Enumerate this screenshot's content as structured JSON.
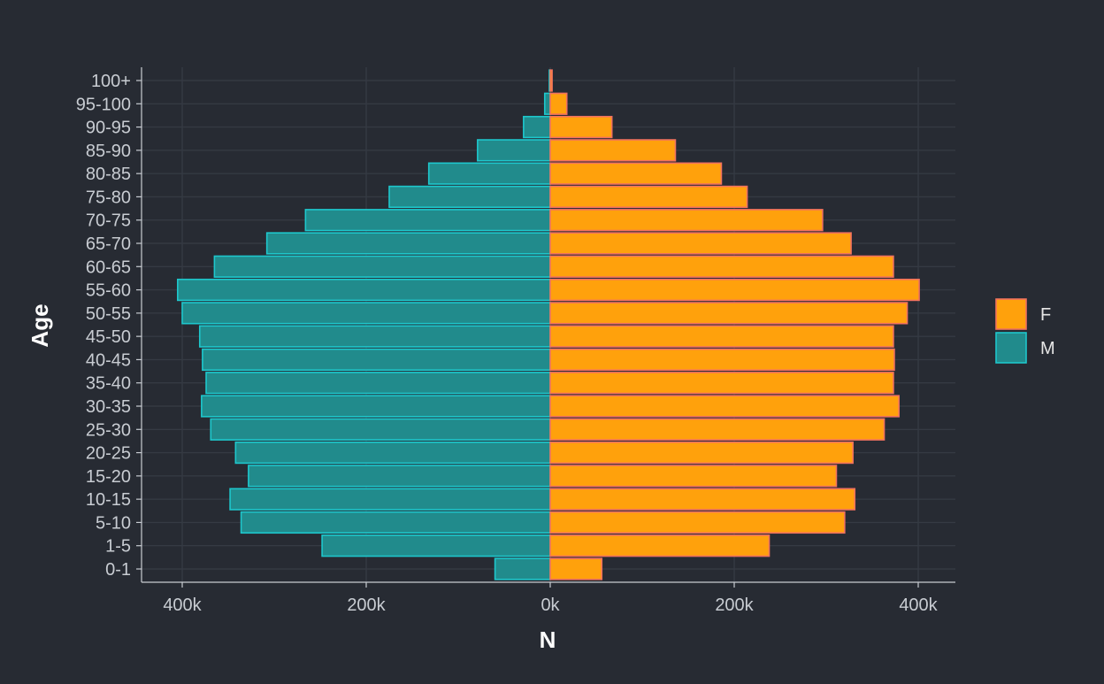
{
  "chart_data": {
    "type": "bar",
    "orientation": "horizontal-diverging",
    "categories": [
      "0-1",
      "1-5",
      "5-10",
      "10-15",
      "15-20",
      "20-25",
      "25-30",
      "30-35",
      "35-40",
      "40-45",
      "45-50",
      "50-55",
      "55-60",
      "60-65",
      "65-70",
      "70-75",
      "75-80",
      "80-85",
      "85-90",
      "90-95",
      "95-100",
      "100+"
    ],
    "series": [
      {
        "name": "F",
        "color": "#ffa10c",
        "border": "#f2725f",
        "values": [
          56000,
          238000,
          320000,
          331000,
          311000,
          329000,
          363000,
          379000,
          373000,
          374000,
          373000,
          388000,
          401000,
          373000,
          327000,
          296000,
          214000,
          186000,
          136000,
          67000,
          18000,
          2000
        ]
      },
      {
        "name": "M",
        "color": "#218b8c",
        "border": "#1ec7cc",
        "values": [
          60000,
          248000,
          336000,
          348000,
          328000,
          342000,
          369000,
          379000,
          374000,
          378000,
          381000,
          400000,
          405000,
          365000,
          308000,
          266000,
          175000,
          132000,
          79000,
          29000,
          6000,
          1000
        ]
      }
    ],
    "xlabel": "N",
    "ylabel": "Age",
    "xlim": [
      -440000,
      440000
    ],
    "x_ticks": [
      -400000,
      -200000,
      0,
      200000,
      400000
    ],
    "x_tick_labels": [
      "400k",
      "200k",
      "0k",
      "200k",
      "400k"
    ],
    "grid": true,
    "legend_position": "right"
  }
}
